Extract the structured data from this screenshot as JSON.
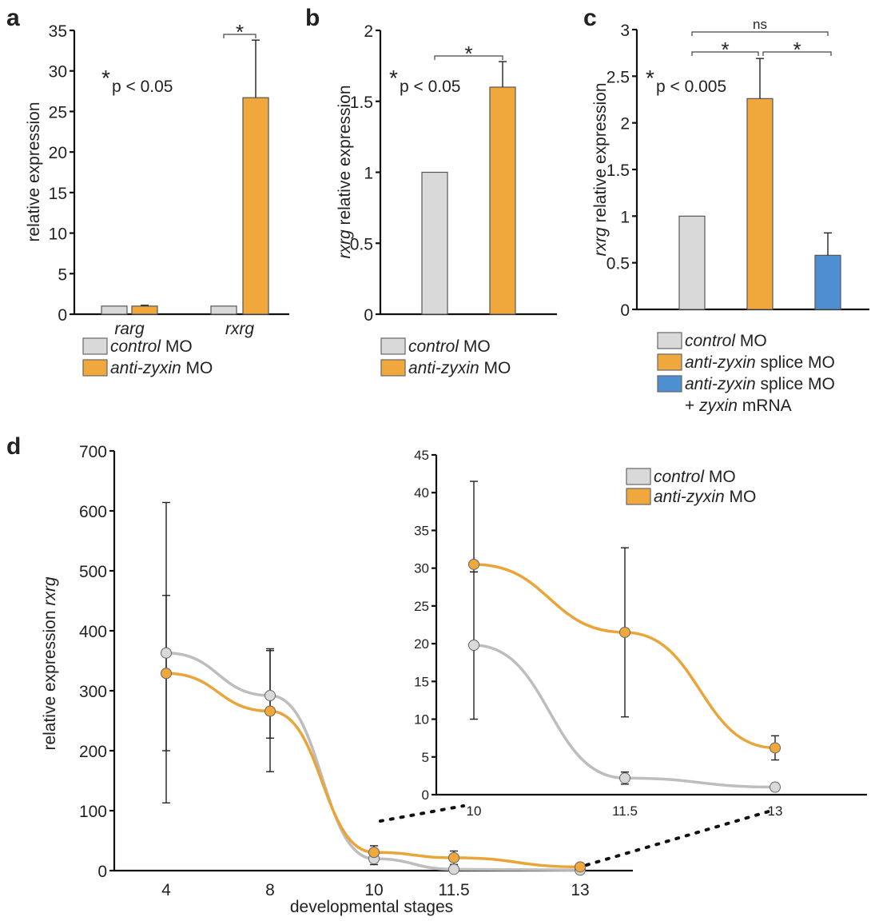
{
  "colors": {
    "control": "#d9d9d9",
    "anti": "#f0a83c",
    "rescue": "#4d8fd0",
    "control_line": "#bdbdbd",
    "anti_line": "#eaa53a"
  },
  "chart_data": [
    {
      "panel": "a",
      "type": "bar",
      "categories": [
        "rarg",
        "rxrg"
      ],
      "series": [
        {
          "name": "control MO",
          "values": [
            1.0,
            1.0
          ],
          "errors": [
            null,
            null
          ]
        },
        {
          "name": "anti-zyxin MO",
          "values": [
            1.0,
            26.7
          ],
          "errors": [
            0.1,
            7.1
          ]
        }
      ],
      "ylabel": "relative expression",
      "ylim": [
        0,
        35
      ],
      "yticks": [
        0,
        5,
        10,
        15,
        20,
        25,
        30,
        35
      ],
      "annotation": "p < 0.05",
      "significance": [
        {
          "between": [
            "rxrg control MO",
            "rxrg anti-zyxin MO"
          ],
          "mark": "*"
        }
      ],
      "legend": [
        {
          "italic": "control",
          "rest": " MO"
        },
        {
          "italic": "anti-zyxin",
          "rest": " MO"
        }
      ],
      "legend_position": "bottom"
    },
    {
      "panel": "b",
      "type": "bar",
      "categories": [
        "control MO",
        "anti-zyxin MO"
      ],
      "values": [
        1.0,
        1.6
      ],
      "errors": [
        null,
        0.18
      ],
      "ylabel_italic": "rxrg",
      "ylabel": " relative expression",
      "ylim": [
        0,
        2
      ],
      "yticks": [
        0,
        0.5,
        1,
        1.5,
        2
      ],
      "annotation": "p < 0.05",
      "significance": [
        {
          "between": [
            "control MO",
            "anti-zyxin MO"
          ],
          "mark": "*"
        }
      ],
      "legend": [
        {
          "italic": "control",
          "rest": " MO"
        },
        {
          "italic": "anti-zyxin",
          "rest": " MO"
        }
      ],
      "legend_position": "bottom"
    },
    {
      "panel": "c",
      "type": "bar",
      "categories": [
        "control MO",
        "anti-zyxin splice MO",
        "anti-zyxin splice MO + zyxin mRNA"
      ],
      "values": [
        1.0,
        2.26,
        0.58
      ],
      "errors": [
        null,
        0.43,
        0.24
      ],
      "ylabel_italic": "rxrg",
      "ylabel": " relative expression",
      "ylim": [
        0,
        3
      ],
      "yticks": [
        0,
        0.5,
        1,
        1.5,
        2,
        2.5,
        3
      ],
      "annotation": "p < 0.005",
      "significance": [
        {
          "between": [
            "control MO",
            "anti-zyxin splice MO"
          ],
          "mark": "*"
        },
        {
          "between": [
            "anti-zyxin splice MO",
            "anti-zyxin splice MO + zyxin mRNA"
          ],
          "mark": "*"
        },
        {
          "between": [
            "control MO",
            "anti-zyxin splice MO + zyxin mRNA"
          ],
          "mark": "ns"
        }
      ],
      "legend": [
        {
          "italic": "control",
          "rest": " MO"
        },
        {
          "italic": "anti-zyxin",
          "rest": " splice MO"
        },
        {
          "italic": "anti-zyxin",
          "rest": " splice MO",
          "line2_pre": "+ ",
          "line2_italic": "zyxin",
          "line2_rest": " mRNA"
        }
      ],
      "legend_position": "bottom"
    },
    {
      "panel": "d",
      "type": "line",
      "x": [
        4,
        8,
        10,
        11.5,
        13
      ],
      "xtick_labels": [
        "4",
        "8",
        "10",
        "11.5",
        "13"
      ],
      "xlabel": "developmental stages",
      "ylabel": "relative expression ",
      "ylabel_italic": "rxrg",
      "ylim": [
        0,
        700
      ],
      "yticks": [
        0,
        100,
        200,
        300,
        400,
        500,
        600,
        700
      ],
      "series": [
        {
          "name": "control MO",
          "values": [
            363,
            292,
            19.8,
            2.2,
            1.0
          ],
          "err_low": [
            113,
            165,
            10,
            1.4,
            0.8
          ],
          "err_high": [
            614,
            370,
            29.5,
            3.0,
            1.2
          ]
        },
        {
          "name": "anti-zyxin MO",
          "values": [
            329,
            266,
            30.5,
            21.5,
            6.2
          ],
          "err_low": [
            200,
            221,
            29.5,
            10.3,
            4.6
          ],
          "err_high": [
            459,
            367,
            41.5,
            32.7,
            7.8
          ]
        }
      ],
      "inset": {
        "x": [
          10,
          11.5,
          13
        ],
        "xtick_labels": [
          "10",
          "11.5",
          "13"
        ],
        "ylim": [
          0,
          45
        ],
        "yticks": [
          0,
          5,
          10,
          15,
          20,
          25,
          30,
          35,
          40,
          45
        ],
        "series": [
          {
            "name": "control MO",
            "values": [
              19.8,
              2.2,
              1.0
            ],
            "err_low": [
              10.0,
              1.4,
              0.8
            ],
            "err_high": [
              29.5,
              3.0,
              1.2
            ]
          },
          {
            "name": "anti-zyxin MO",
            "values": [
              30.5,
              21.5,
              6.2
            ],
            "err_low": [
              29.5,
              10.3,
              4.6
            ],
            "err_high": [
              41.5,
              32.7,
              7.8
            ]
          }
        ],
        "legend": [
          {
            "italic": "control",
            "rest": " MO"
          },
          {
            "italic": "anti-zyxin",
            "rest": " MO"
          }
        ],
        "legend_position": "top-right"
      }
    }
  ],
  "panel_labels": [
    "a",
    "b",
    "c",
    "d"
  ]
}
